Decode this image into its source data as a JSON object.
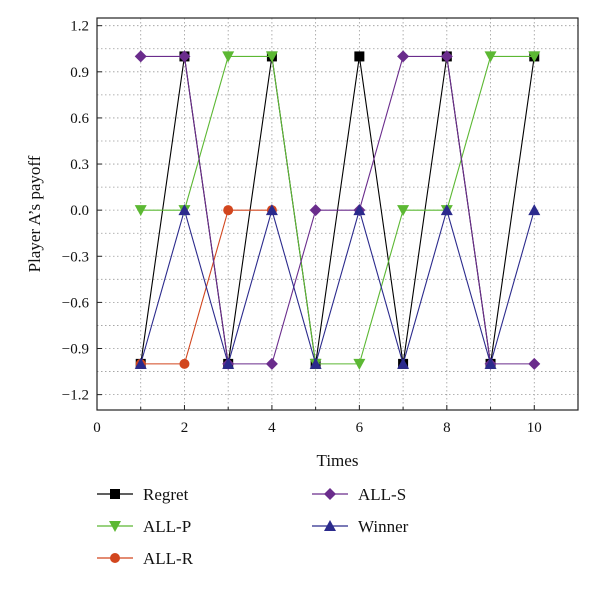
{
  "chart_data": {
    "type": "line",
    "title": "",
    "xlabel": "Times",
    "ylabel": "Player A’s payoff",
    "xlim": [
      0,
      11
    ],
    "ylim": [
      -1.3,
      1.25
    ],
    "xticks": [
      0,
      2,
      4,
      6,
      8,
      10
    ],
    "yticks": [
      -1.2,
      -0.9,
      -0.6,
      -0.3,
      0.0,
      0.3,
      0.6,
      0.9,
      1.2
    ],
    "ytick_labels": [
      "−1.2",
      "−0.9",
      "−0.6",
      "−0.3",
      "0.0",
      "0.3",
      "0.6",
      "0.9",
      "1.2"
    ],
    "grid": true,
    "legend_position": "bottom",
    "series": [
      {
        "name": "Regret",
        "color": "#000000",
        "marker": "square",
        "x": [
          1,
          2,
          3,
          4,
          5,
          6,
          7,
          8,
          9,
          10
        ],
        "y": [
          -1,
          1,
          -1,
          1,
          -1,
          1,
          -1,
          1,
          -1,
          1
        ]
      },
      {
        "name": "ALL-P",
        "color": "#5cb833",
        "marker": "triangle-down",
        "x": [
          1,
          2,
          3,
          4,
          5,
          6,
          7,
          8,
          9,
          10
        ],
        "y": [
          0,
          0,
          1,
          1,
          -1,
          -1,
          0,
          0,
          1,
          1
        ]
      },
      {
        "name": "ALL-R",
        "color": "#d2461e",
        "marker": "circle",
        "x": [
          1,
          2,
          3,
          4
        ],
        "y": [
          -1,
          -1,
          0,
          0
        ]
      },
      {
        "name": "ALL-S",
        "color": "#6a2c8c",
        "marker": "diamond",
        "x": [
          1,
          2,
          3,
          4,
          5,
          6,
          7,
          8,
          9,
          10
        ],
        "y": [
          1,
          1,
          -1,
          -1,
          0,
          0,
          1,
          1,
          -1,
          -1
        ]
      },
      {
        "name": "Winner",
        "color": "#2b2a8c",
        "marker": "triangle-up",
        "x": [
          1,
          2,
          3,
          4,
          5,
          6,
          7,
          8,
          9,
          10
        ],
        "y": [
          -1,
          0,
          -1,
          0,
          -1,
          0,
          -1,
          0,
          -1,
          0
        ]
      }
    ]
  }
}
